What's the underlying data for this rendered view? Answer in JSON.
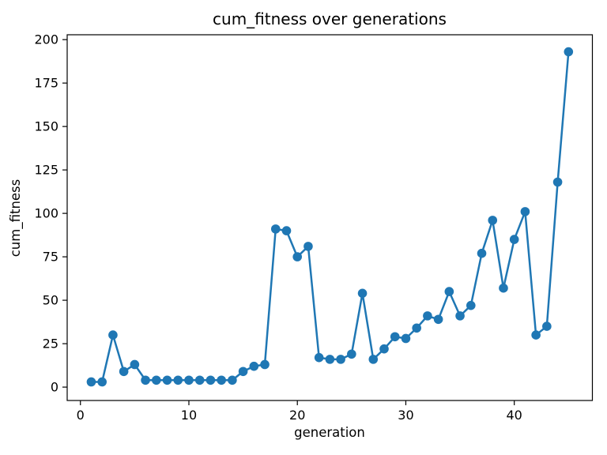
{
  "figure": {
    "title": "cum_fitness over generations",
    "xlabel": "generation",
    "ylabel": "cum_fitness"
  },
  "chart_data": {
    "type": "line",
    "title": "cum_fitness over generations",
    "xlabel": "generation",
    "ylabel": "cum_fitness",
    "series_name": "cum_fitness",
    "series_color": "#1f77b4",
    "marker": "circle",
    "grid": false,
    "x": [
      1,
      2,
      3,
      4,
      5,
      6,
      7,
      8,
      9,
      10,
      11,
      12,
      13,
      14,
      15,
      16,
      17,
      18,
      19,
      20,
      21,
      22,
      23,
      24,
      25,
      26,
      27,
      28,
      29,
      30,
      31,
      32,
      33,
      34,
      35,
      36,
      37,
      38,
      39,
      40,
      41,
      42,
      43,
      44,
      45
    ],
    "values": [
      3,
      3,
      30,
      9,
      13,
      4,
      4,
      4,
      4,
      4,
      4,
      4,
      4,
      4,
      9,
      12,
      13,
      91,
      90,
      75,
      81,
      17,
      16,
      16,
      19,
      54,
      16,
      22,
      29,
      28,
      34,
      41,
      39,
      55,
      41,
      47,
      77,
      96,
      57,
      85,
      101,
      30,
      35,
      118,
      193
    ],
    "xticks": [
      0,
      10,
      20,
      30,
      40
    ],
    "yticks": [
      0,
      25,
      50,
      75,
      100,
      125,
      150,
      175,
      200
    ],
    "xlim": [
      -1.22,
      47.2
    ],
    "ylim": [
      -7.7,
      202.8
    ]
  }
}
